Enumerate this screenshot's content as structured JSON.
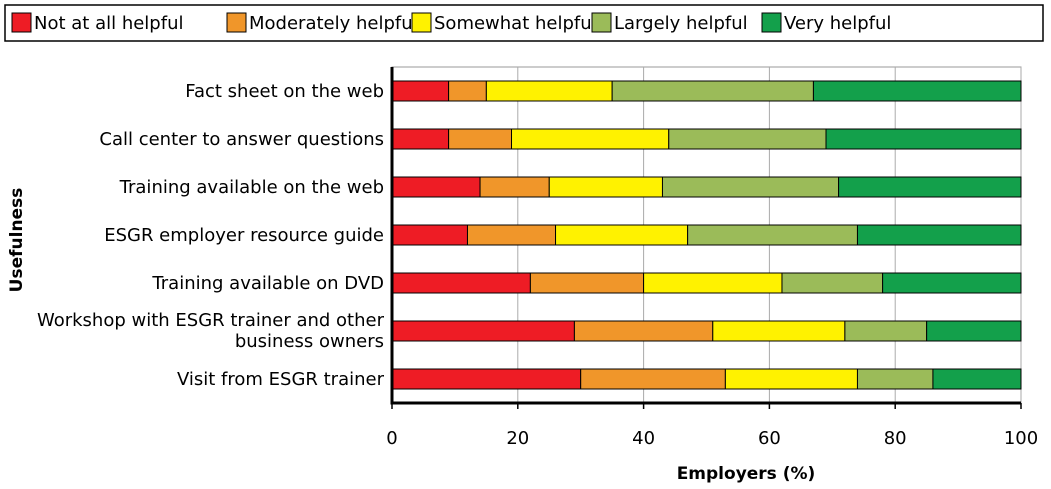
{
  "chart_data": {
    "type": "stacked_barh",
    "categories": [
      "Fact sheet on the web",
      "Call center to answer questions",
      "Training available on the web",
      "ESGR employer resource guide",
      "Training available on DVD",
      "Workshop with ESGR trainer and other business owners",
      "Visit from ESGR trainer"
    ],
    "series": [
      {
        "name": "Not at all helpful",
        "color": "#ee1c25",
        "values": [
          9,
          9,
          14,
          12,
          22,
          29,
          30
        ]
      },
      {
        "name": "Moderately helpful",
        "color": "#f0962a",
        "values": [
          6,
          10,
          11,
          14,
          18,
          22,
          23
        ]
      },
      {
        "name": "Somewhat helpful",
        "color": "#fff200",
        "values": [
          20,
          25,
          18,
          21,
          22,
          21,
          21
        ]
      },
      {
        "name": "Largely helpful",
        "color": "#9bbb59",
        "values": [
          32,
          25,
          28,
          27,
          16,
          13,
          12
        ]
      },
      {
        "name": "Very helpful",
        "color": "#13a04b",
        "values": [
          33,
          31,
          29,
          26,
          22,
          15,
          14
        ]
      }
    ],
    "xlim": [
      0,
      100
    ],
    "xticks": [
      0,
      20,
      40,
      60,
      80,
      100
    ],
    "xlabel": "Employers (%)",
    "ylabel": "Usefulness",
    "grid": true,
    "legend": "top"
  }
}
